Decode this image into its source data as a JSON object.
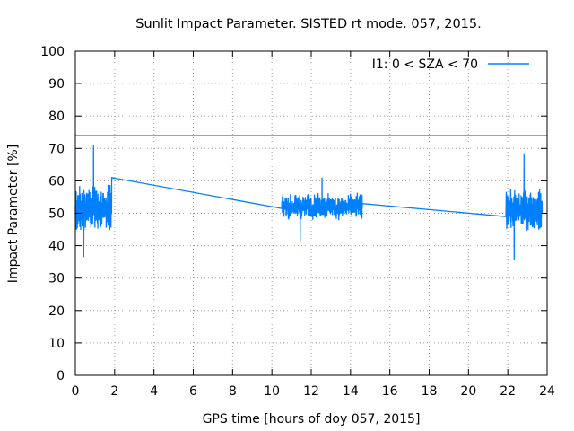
{
  "chart_data": {
    "type": "line",
    "title": "Sunlit Impact Parameter. SISTED rt mode. 057, 2015.",
    "xlabel": "GPS time [hours of doy 057, 2015]",
    "ylabel": "Impact Parameter [%]",
    "xlim": [
      0,
      24
    ],
    "ylim": [
      0,
      100
    ],
    "xticks": [
      "0",
      "2",
      "4",
      "6",
      "8",
      "10",
      "12",
      "14",
      "16",
      "18",
      "20",
      "22",
      "24"
    ],
    "yticks": [
      "0",
      "10",
      "20",
      "30",
      "40",
      "50",
      "60",
      "70",
      "80",
      "90",
      "100"
    ],
    "grid": true,
    "legend_position": "top-right",
    "threshold": {
      "value": 74,
      "color": "#339900"
    },
    "series": [
      {
        "name": "I1: 0 < SZA < 70",
        "color": "#0080ff",
        "segments": [
          {
            "x_start": 0.0,
            "x_end": 1.85,
            "center": 51.5,
            "spread": 9,
            "min": 36.5,
            "max": 71
          },
          {
            "x_start": 1.85,
            "x_end": 10.5,
            "trend_from": 61,
            "trend_to": 51.5
          },
          {
            "x_start": 10.5,
            "x_end": 14.6,
            "center": 52,
            "spread": 5,
            "min": 41.5,
            "max": 61
          },
          {
            "x_start": 14.6,
            "x_end": 21.9,
            "trend_from": 53,
            "trend_to": 49
          },
          {
            "x_start": 21.9,
            "x_end": 23.75,
            "center": 51,
            "spread": 8,
            "min": 35.5,
            "max": 68.5
          }
        ]
      }
    ]
  }
}
